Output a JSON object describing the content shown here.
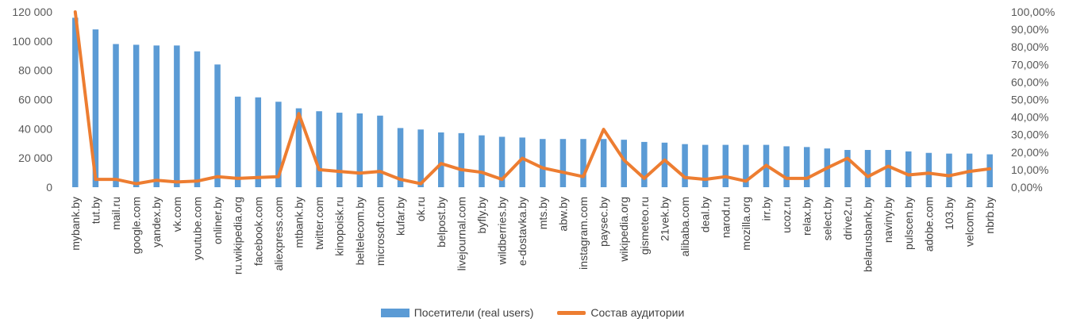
{
  "chart_data": {
    "type": "bar",
    "title": "",
    "categories": [
      "mybank.by",
      "tut.by",
      "mail.ru",
      "google.com",
      "yandex.by",
      "vk.com",
      "youtube.com",
      "onliner.by",
      "ru.wikipedia.org",
      "facebook.com",
      "aliexpress.com",
      "mtbank.by",
      "twitter.com",
      "kinopoisk.ru",
      "beltelecom.by",
      "microsoft.com",
      "kufar.by",
      "ok.ru",
      "belpost.by",
      "livejournal.com",
      "byfly.by",
      "wildberries.by",
      "e-dostavka.by",
      "mts.by",
      "abw.by",
      "instagram.com",
      "paysec.by",
      "wikipedia.org",
      "gismeteo.ru",
      "21vek.by",
      "alibaba.com",
      "deal.by",
      "narod.ru",
      "mozilla.org",
      "irr.by",
      "ucoz.ru",
      "relax.by",
      "select.by",
      "drive2.ru",
      "belarusbank.by",
      "naviny.by",
      "pulscen.by",
      "adobe.com",
      "103.by",
      "velcom.by",
      "nbrb.by"
    ],
    "series": [
      {
        "name": "Посетители (real users)",
        "kind": "bar",
        "axis": "left",
        "color": "#5b9bd5",
        "values": [
          116000,
          108000,
          98000,
          97500,
          97000,
          97000,
          93000,
          84000,
          62000,
          61500,
          58500,
          54000,
          52000,
          51000,
          50500,
          49000,
          40500,
          39500,
          37500,
          37000,
          35500,
          34500,
          34000,
          33000,
          33000,
          33000,
          33000,
          32500,
          31000,
          30500,
          29500,
          29000,
          29000,
          29000,
          29000,
          28000,
          27500,
          26500,
          25500,
          25500,
          25500,
          24500,
          23500,
          23000,
          23000,
          22500
        ]
      },
      {
        "name": "Состав аудитории",
        "kind": "line",
        "axis": "right",
        "color": "#ed7d31",
        "values": [
          100,
          4.5,
          4.5,
          2,
          4,
          3,
          3.5,
          6,
          5,
          5.5,
          6,
          42,
          10,
          9,
          8,
          9,
          4.5,
          2,
          13.5,
          10,
          8.5,
          4.5,
          16.5,
          11,
          8.5,
          6,
          33,
          15.5,
          5,
          15.5,
          5.5,
          4.5,
          6,
          3.5,
          12.5,
          5,
          5,
          11,
          16.5,
          6,
          12,
          7,
          8,
          6.5,
          9,
          10.5
        ]
      }
    ],
    "y_left": {
      "min": 0,
      "max": 120000,
      "step": 20000,
      "ticks": [
        "0",
        "20 000",
        "40 000",
        "60 000",
        "80 000",
        "100 000",
        "120 000"
      ]
    },
    "y_right": {
      "min": 0,
      "max": 100,
      "step": 10,
      "ticks": [
        "0,00%",
        "10,00%",
        "20,00%",
        "30,00%",
        "40,00%",
        "50,00%",
        "60,00%",
        "70,00%",
        "80,00%",
        "90,00%",
        "100,00%"
      ]
    },
    "grid": false,
    "legend_position": "bottom"
  }
}
